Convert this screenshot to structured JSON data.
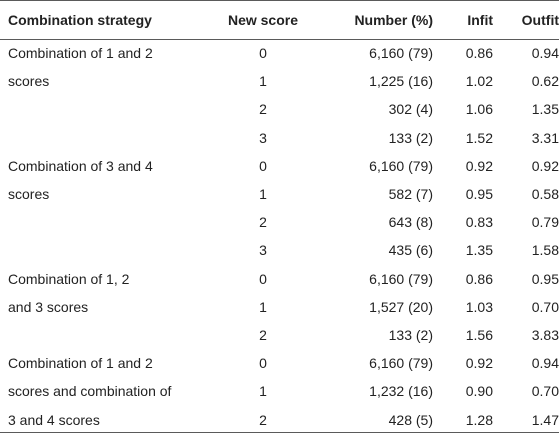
{
  "table": {
    "headers": {
      "strategy": "Combination strategy",
      "new_score": "New score",
      "number": "Number (%)",
      "infit": "Infit",
      "outfit": "Outfit"
    },
    "rows": [
      {
        "strategy": "Combination of 1 and 2",
        "new_score": "0",
        "number": "6,160 (79)",
        "infit": "0.86",
        "outfit": "0.94"
      },
      {
        "strategy": "scores",
        "new_score": "1",
        "number": "1,225 (16)",
        "infit": "1.02",
        "outfit": "0.62"
      },
      {
        "strategy": "",
        "new_score": "2",
        "number": "302 (4)",
        "infit": "1.06",
        "outfit": "1.35"
      },
      {
        "strategy": "",
        "new_score": "3",
        "number": "133 (2)",
        "infit": "1.52",
        "outfit": "3.31"
      },
      {
        "strategy": "Combination of 3 and 4",
        "new_score": "0",
        "number": "6,160 (79)",
        "infit": "0.92",
        "outfit": "0.92"
      },
      {
        "strategy": "scores",
        "new_score": "1",
        "number": "582 (7)",
        "infit": "0.95",
        "outfit": "0.58"
      },
      {
        "strategy": "",
        "new_score": "2",
        "number": "643 (8)",
        "infit": "0.83",
        "outfit": "0.79"
      },
      {
        "strategy": "",
        "new_score": "3",
        "number": "435 (6)",
        "infit": "1.35",
        "outfit": "1.58"
      },
      {
        "strategy": "Combination of 1, 2",
        "new_score": "0",
        "number": "6,160 (79)",
        "infit": "0.86",
        "outfit": "0.95"
      },
      {
        "strategy": "and 3 scores",
        "new_score": "1",
        "number": "1,527 (20)",
        "infit": "1.03",
        "outfit": "0.70"
      },
      {
        "strategy": "",
        "new_score": "2",
        "number": "133 (2)",
        "infit": "1.56",
        "outfit": "3.83"
      },
      {
        "strategy": "Combination of 1 and 2",
        "new_score": "0",
        "number": "6,160 (79)",
        "infit": "0.92",
        "outfit": "0.94"
      },
      {
        "strategy": "scores and combination of",
        "new_score": "1",
        "number": "1,232 (16)",
        "infit": "0.90",
        "outfit": "0.70"
      },
      {
        "strategy": "3 and 4 scores",
        "new_score": "2",
        "number": "428 (5)",
        "infit": "1.28",
        "outfit": "1.47"
      }
    ]
  }
}
